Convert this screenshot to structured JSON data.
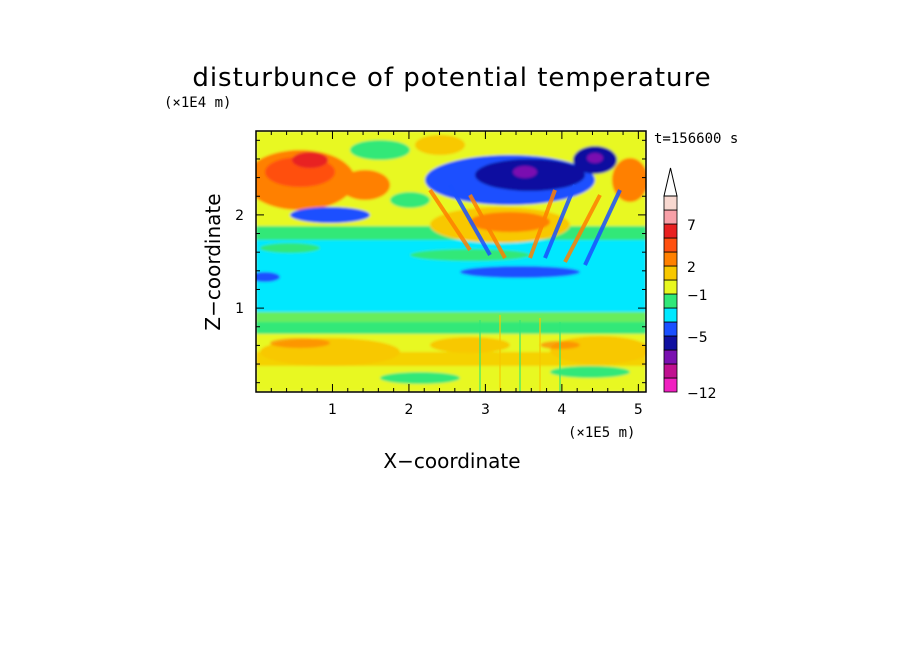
{
  "chart_data": {
    "type": "heatmap",
    "title": "disturbunce of potential temperature",
    "xlabel": "X−coordinate",
    "ylabel": "Z−coordinate",
    "x_scale_label": "(×1E5 m)",
    "y_scale_label": "(×1E4 m)",
    "time_label": "t=156600 s",
    "xlim": [
      0,
      5.1
    ],
    "ylim": [
      0.1,
      2.9
    ],
    "x_ticks": [
      "1",
      "2",
      "3",
      "4",
      "5"
    ],
    "y_ticks": [
      "1",
      "2"
    ],
    "colorbar": {
      "levels": [
        {
          "color": "#f020c0"
        },
        {
          "color": "#c01090"
        },
        {
          "color": "#7a10b0"
        },
        {
          "color": "#1010a0"
        },
        {
          "color": "#1a50ff"
        },
        {
          "color": "#00e8ff"
        },
        {
          "color": "#30e878"
        },
        {
          "color": "#e8f820"
        },
        {
          "color": "#f8c800"
        },
        {
          "color": "#ff8000"
        },
        {
          "color": "#ff5010"
        },
        {
          "color": "#e82020"
        },
        {
          "color": "#f8a0a8"
        },
        {
          "color": "#f8d8d0"
        }
      ],
      "tick_labels": [
        "−12",
        "−5",
        "−1",
        "2",
        "7"
      ],
      "extend": "max"
    }
  }
}
